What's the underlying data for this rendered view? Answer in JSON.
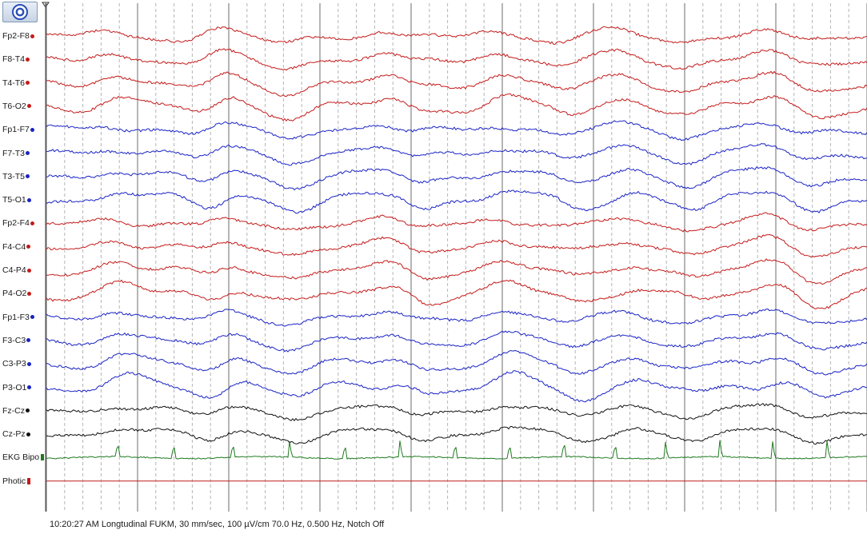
{
  "toolbar": {
    "button_icon": "montage-settings-icon"
  },
  "channels": [
    {
      "label": "Fp2-F8",
      "color": "#c41a1a"
    },
    {
      "label": "F8-T4",
      "color": "#c41a1a"
    },
    {
      "label": "T4-T6",
      "color": "#c41a1a"
    },
    {
      "label": "T6-O2",
      "color": "#c41a1a"
    },
    {
      "label": "Fp1-F7",
      "color": "#1a23c4"
    },
    {
      "label": "F7-T3",
      "color": "#1a23c4"
    },
    {
      "label": "T3-T5",
      "color": "#1a23c4"
    },
    {
      "label": "T5-O1",
      "color": "#1a23c4"
    },
    {
      "label": "Fp2-F4",
      "color": "#c41a1a"
    },
    {
      "label": "F4-C4",
      "color": "#c41a1a"
    },
    {
      "label": "C4-P4",
      "color": "#c41a1a"
    },
    {
      "label": "P4-O2",
      "color": "#c41a1a"
    },
    {
      "label": "Fp1-F3",
      "color": "#1a23c4"
    },
    {
      "label": "F3-C3",
      "color": "#1a23c4"
    },
    {
      "label": "C3-P3",
      "color": "#1a23c4"
    },
    {
      "label": "P3-O1",
      "color": "#1a23c4"
    },
    {
      "label": "Fz-Cz",
      "color": "#111111"
    },
    {
      "label": "Cz-Pz",
      "color": "#111111"
    },
    {
      "label": "EKG Bipo",
      "color": "#1f7a1f"
    },
    {
      "label": "Photic",
      "color": "#c41a1a"
    }
  ],
  "status": {
    "text": "10:20:27 AM Longtudinal FUKM, 30 mm/sec, 100 µV/cm 70.0 Hz, 0.500 Hz, Notch Off"
  },
  "colors": {
    "grid_major": "#6b6b6b",
    "grid_minor": "#b5b5b5",
    "photic_line": "#c41a1a"
  }
}
